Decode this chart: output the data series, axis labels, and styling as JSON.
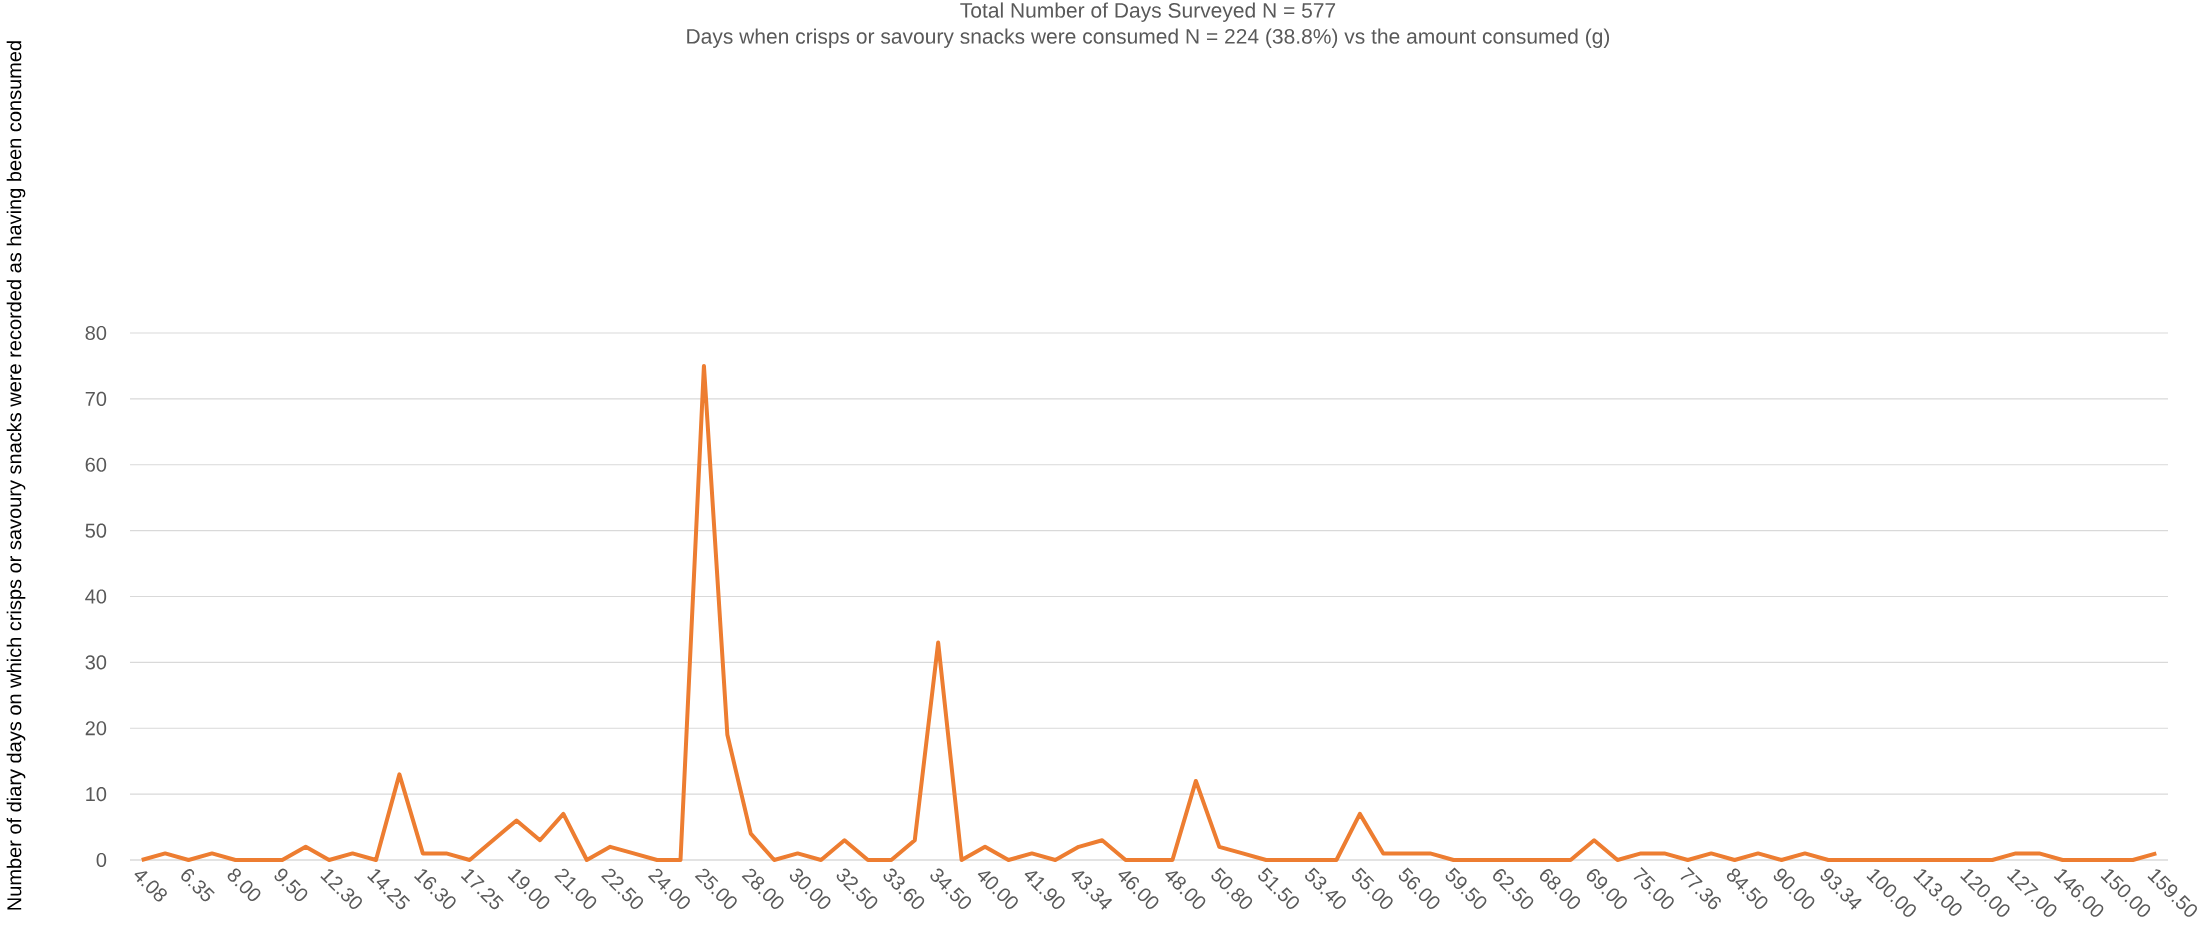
{
  "chart_data": {
    "type": "line",
    "title": "Total Number of Days Surveyed N = 577",
    "subtitle": "Days when crisps or savoury snacks were consumed N = 224 (38.8%) vs the amount consumed (g)",
    "ylabel": "Number of diary days on which crisps or savoury snacks were recorded as having been consumed",
    "categories": [
      "4.08",
      null,
      "6.35",
      null,
      "8.00",
      null,
      "9.50",
      null,
      "12.30",
      null,
      "14.25",
      null,
      "16.30",
      null,
      "17.25",
      null,
      "19.00",
      null,
      "21.00",
      null,
      "22.50",
      null,
      "24.00",
      null,
      "25.00",
      null,
      "28.00",
      null,
      "30.00",
      null,
      "32.50",
      null,
      "33.60",
      null,
      "34.50",
      null,
      "40.00",
      null,
      "41.90",
      null,
      "43.34",
      null,
      "46.00",
      null,
      "48.00",
      null,
      "50.80",
      null,
      "51.50",
      null,
      "53.40",
      null,
      "55.00",
      null,
      "56.00",
      null,
      "59.50",
      null,
      "62.50",
      null,
      "68.00",
      null,
      "69.00",
      null,
      "75.00",
      null,
      "77.36",
      null,
      "84.50",
      null,
      "90.00",
      null,
      "93.34",
      null,
      "100.00",
      null,
      "113.00",
      null,
      "120.00",
      null,
      "127.00",
      null,
      "146.00",
      null,
      "150.00",
      null,
      "159.50"
    ],
    "values": [
      0,
      1,
      0,
      1,
      0,
      0,
      0,
      2,
      0,
      1,
      0,
      13,
      1,
      1,
      0,
      3,
      6,
      3,
      7,
      0,
      2,
      1,
      0,
      0,
      75,
      19,
      4,
      0,
      1,
      0,
      3,
      0,
      0,
      3,
      33,
      0,
      2,
      0,
      1,
      0,
      2,
      3,
      0,
      0,
      0,
      12,
      2,
      1,
      0,
      0,
      0,
      0,
      7,
      1,
      1,
      1,
      0,
      0,
      0,
      0,
      0,
      0,
      3,
      0,
      1,
      1,
      0,
      1,
      0,
      1,
      0,
      1,
      0,
      0,
      0,
      0,
      0,
      0,
      0,
      0,
      1,
      1,
      0,
      0,
      0,
      0,
      1
    ],
    "color": "#ed7d31",
    "ylim": [
      0,
      80
    ],
    "yticks": [
      0,
      10,
      20,
      30,
      40,
      50,
      60,
      70,
      80
    ],
    "grid": "y"
  }
}
